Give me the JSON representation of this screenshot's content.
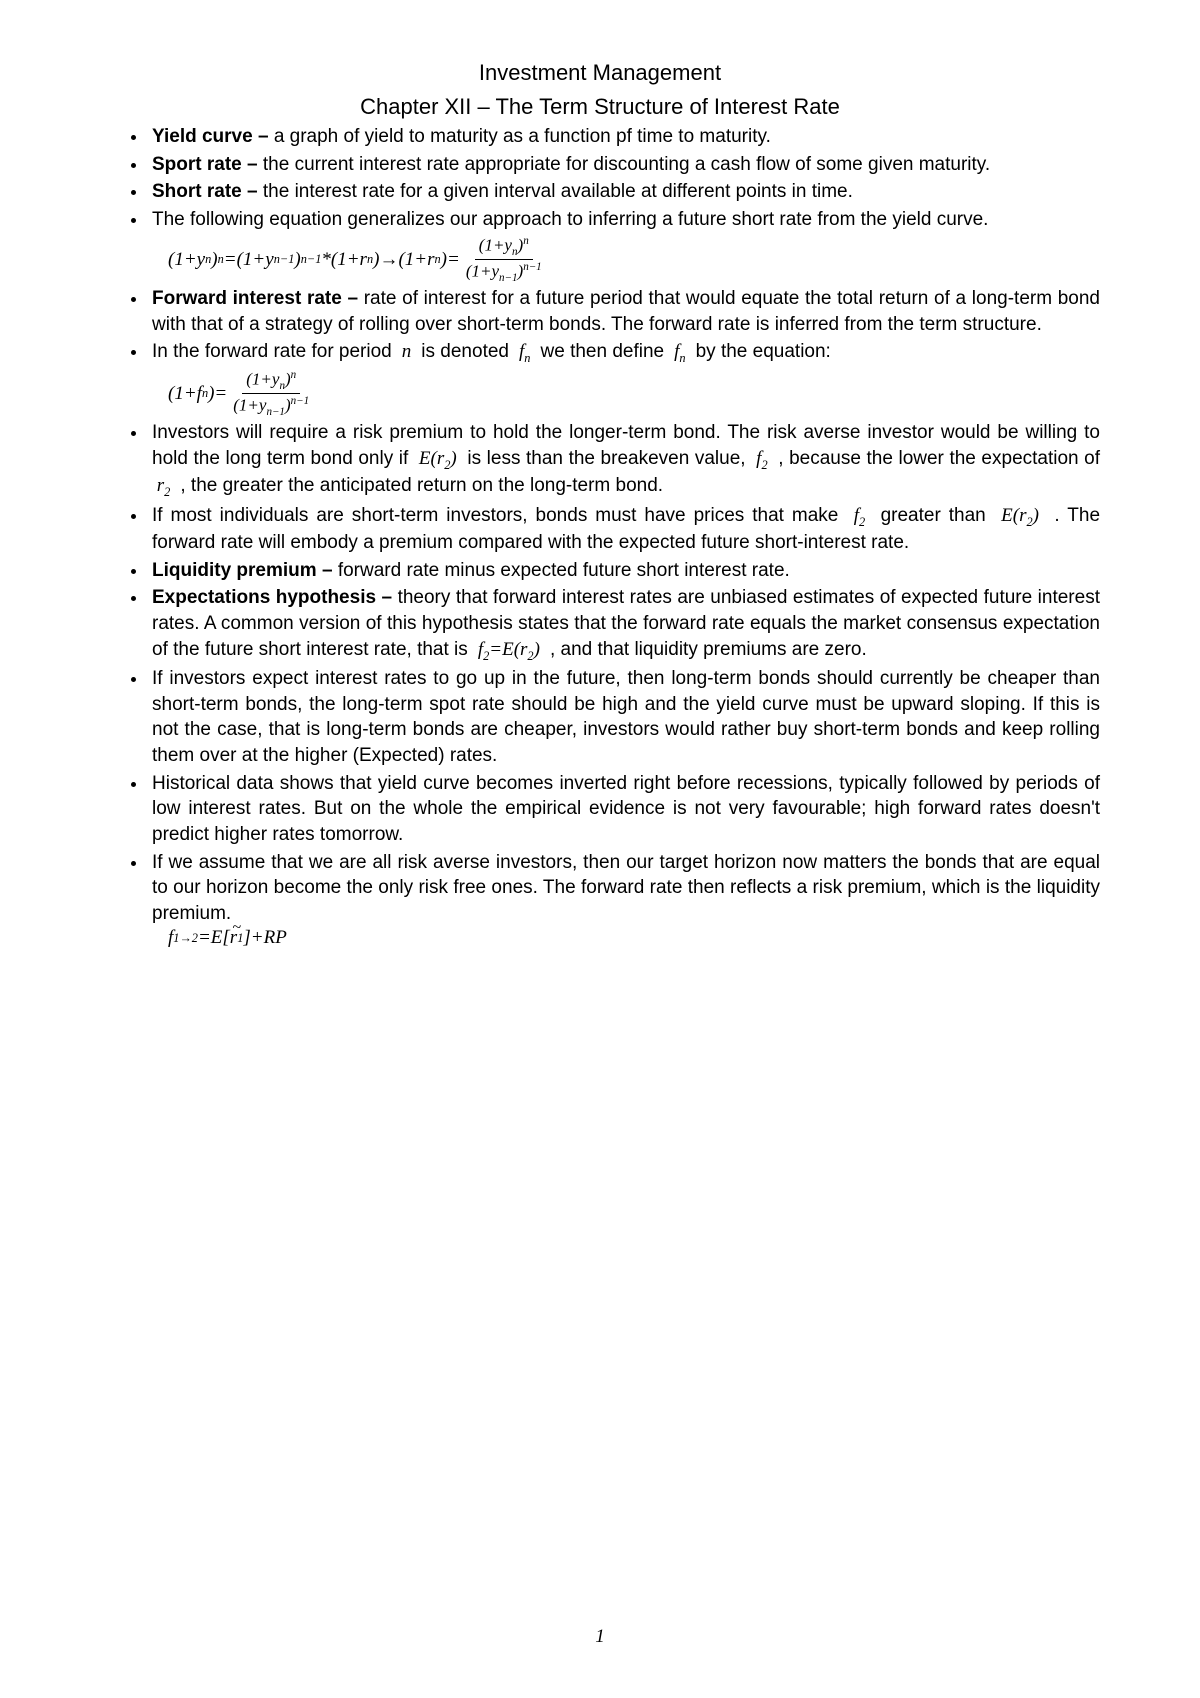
{
  "page": {
    "title": "Investment Management",
    "chapter": "Chapter XII – The Term Structure of Interest Rate",
    "page_number": "1",
    "text_color": "#000000",
    "background_color": "#ffffff",
    "body_fontsize": 19,
    "title_fontsize": 22
  },
  "bullets": [
    {
      "term": "Yield curve – ",
      "body": "a graph of yield to maturity as a function pf time to maturity."
    },
    {
      "term": "Sport rate – ",
      "body": "the current interest rate appropriate for discounting a cash flow of some given maturity."
    },
    {
      "term": "Short rate – ",
      "body": "the interest rate for a given interval available at different points in time."
    },
    {
      "term": "",
      "body": "The following equation generalizes our approach to inferring a future short rate from the yield curve."
    },
    {
      "term": "Forward interest rate – ",
      "body": "rate of interest for a future period that would equate the total return of a long-term bond with that of a strategy of rolling over short-term bonds. The forward rate is inferred from the term structure."
    },
    {
      "term": "",
      "pre": "In the forward rate for period ",
      "m1": "n",
      "mid1": " is denoted ",
      "m2": "f",
      "m2sub": "n",
      "mid2": " we then define ",
      "m3": "f",
      "m3sub": "n",
      "post": " by the equation:"
    },
    {
      "term": "",
      "pre": "Investors will require a risk premium to hold the longer-term bond. The risk averse investor would be willing to hold the long term bond only if ",
      "m1": "E(r",
      "m1sub": "2",
      "m1post": ")",
      "mid1": " is less than the breakeven value, ",
      "m2": "f",
      "m2sub": "2",
      "mid2": " , because the lower the expectation of ",
      "m3": "r",
      "m3sub": "2",
      "post": " , the greater the anticipated return on the long-term bond."
    },
    {
      "term": "",
      "pre": "If most individuals are short-term investors, bonds must have prices that make ",
      "m1": "f",
      "m1sub": "2",
      "mid1": " greater than ",
      "m2": "E(r",
      "m2sub": "2",
      "m2post": ")",
      "post": " . The forward rate will embody a premium compared with the expected future short-interest rate."
    },
    {
      "term": "Liquidity premium – ",
      "body": "forward rate minus expected future short interest rate."
    },
    {
      "term": "Expectations hypothesis – ",
      "pre": "theory that forward interest rates are unbiased estimates of expected future interest rates. A common version of this hypothesis states that the forward rate equals the market consensus expectation of the future short interest rate, that is ",
      "m1": "f",
      "m1sub": "2",
      "m1mid": "=E(r",
      "m1sub2": "2",
      "m1post": ")",
      "post": " , and that liquidity premiums are zero."
    },
    {
      "term": "",
      "body": "If investors expect interest rates to go up in the future, then long-term bonds should currently be cheaper than short-term bonds, the long-term spot rate should be high and the yield curve must be upward sloping. If this is not the case, that is long-term bonds are cheaper, investors would rather buy short-term bonds and keep rolling them over at the higher (Expected) rates."
    },
    {
      "term": "",
      "body": "Historical data shows that yield curve becomes inverted right before recessions, typically followed by periods of low interest rates. But on the whole the empirical evidence is not very favourable; high forward rates doesn't predict higher rates tomorrow."
    },
    {
      "term": "",
      "body": "If we assume that we are all risk averse investors, then our target horizon now matters the bonds that are equal to our horizon become the only risk free ones. The forward rate then reflects a risk premium, which is the liquidity premium."
    }
  ],
  "equations": {
    "eq1": {
      "lhs_a": "(1+y",
      "lhs_a_sub": "n",
      "lhs_a_post": ")",
      "lhs_a_sup": "n",
      "eq1": "=",
      "lhs_b": "(1+y",
      "lhs_b_sub": "n−1",
      "lhs_b_post": ")",
      "lhs_b_sup": "n−1",
      "star": "*",
      "lhs_c": "(1+r",
      "lhs_c_sub": "n",
      "lhs_c_post": ")",
      "arrow": " → ",
      "rhs_a": "(1+r",
      "rhs_a_sub": "n",
      "rhs_a_post": ")=",
      "frac_num_a": "(1+y",
      "frac_num_sub": "n",
      "frac_num_post": ")",
      "frac_num_sup": "n",
      "frac_den_a": "(1+y",
      "frac_den_sub": "n−1",
      "frac_den_post": ")",
      "frac_den_sup": "n−1"
    },
    "eq2": {
      "lhs": "(1+f",
      "lhs_sub": "n",
      "lhs_post": ")=",
      "frac_num_a": "(1+y",
      "frac_num_sub": "n",
      "frac_num_post": ")",
      "frac_num_sup": "n",
      "frac_den_a": "(1+y",
      "frac_den_sub": "n−1",
      "frac_den_post": ")",
      "frac_den_sup": "n−1"
    },
    "eq3": {
      "a": "f",
      "a_sub": "1→2",
      "mid": "=E[",
      "tilde": "r",
      "tilde_sub": "1",
      "post": "]+RP"
    }
  }
}
